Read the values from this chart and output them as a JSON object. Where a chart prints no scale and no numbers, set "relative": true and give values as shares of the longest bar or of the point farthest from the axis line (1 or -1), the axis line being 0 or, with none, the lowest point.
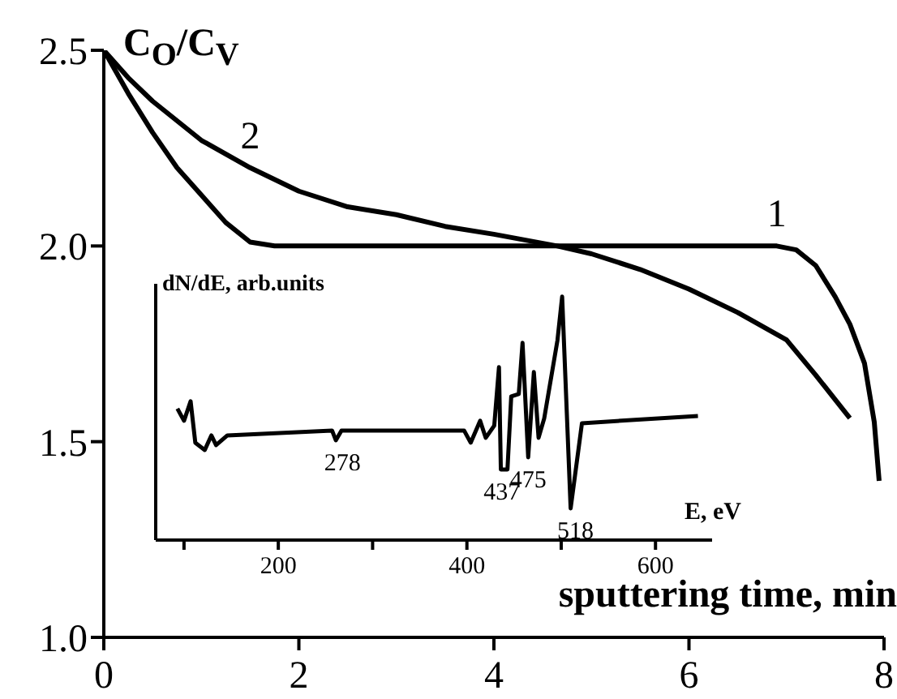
{
  "chart_data": [
    {
      "type": "line",
      "ylabel": "C$_{O}$/C$_{V}$",
      "xlabel": "sputtering time, min",
      "xlim": [
        0,
        8
      ],
      "xticks": [
        0,
        2,
        4,
        6,
        8
      ],
      "ylim": [
        1,
        2.5
      ],
      "yticks": [
        {
          "value": 1,
          "label": "1.0"
        },
        1.5,
        {
          "value": 2,
          "label": "2.0"
        },
        2.5
      ],
      "series": [
        {
          "name": "1",
          "color": "#000000",
          "x": [
            0,
            0.25,
            0.5,
            0.75,
            1,
            1.25,
            1.5,
            1.75,
            6.9,
            7.1,
            7.3,
            7.5,
            7.65,
            7.8,
            7.9,
            7.95
          ],
          "values": [
            2.5,
            2.39,
            2.29,
            2.2,
            2.13,
            2.06,
            2.01,
            2.0,
            2.0,
            1.99,
            1.95,
            1.87,
            1.8,
            1.7,
            1.55,
            1.4
          ]
        },
        {
          "name": "2",
          "color": "#000000",
          "x": [
            0,
            0.25,
            0.5,
            1,
            1.5,
            2,
            2.5,
            3,
            3.5,
            4,
            4.65,
            5,
            5.5,
            6,
            6.5,
            7,
            7.3,
            7.65
          ],
          "values": [
            2.5,
            2.43,
            2.37,
            2.27,
            2.2,
            2.14,
            2.1,
            2.08,
            2.05,
            2.03,
            2.0,
            1.98,
            1.94,
            1.89,
            1.83,
            1.76,
            1.67,
            1.56
          ]
        }
      ]
    },
    {
      "type": "line",
      "relative": true,
      "ylabel": "dN/dE, arb.units",
      "xlabel": "E, eV",
      "xlim": [
        70,
        660
      ],
      "xticks": [
        {
          "value": 100,
          "label": null
        },
        200,
        {
          "value": 300,
          "label": null
        },
        400,
        {
          "value": 500,
          "label": null
        },
        600
      ],
      "series": [
        {
          "color": "#000000",
          "x": [
            93,
            100,
            107,
            112,
            122,
            129,
            134,
            146,
            257,
            261,
            267,
            397,
            404,
            414,
            420,
            429,
            434,
            436,
            443,
            447,
            455,
            459,
            465,
            471,
            476,
            482,
            496,
            501,
            510,
            522,
            645
          ],
          "values": [
            0.54,
            0.49,
            0.57,
            0.4,
            0.37,
            0.43,
            0.39,
            0.43,
            0.45,
            0.41,
            0.45,
            0.45,
            0.4,
            0.49,
            0.42,
            0.47,
            0.71,
            0.29,
            0.29,
            0.59,
            0.6,
            0.81,
            0.34,
            0.69,
            0.42,
            0.5,
            0.82,
            1.0,
            0.13,
            0.48,
            0.51
          ]
        }
      ],
      "annotations": [
        {
          "text": "278",
          "x": 268,
          "y": 0.41
        },
        {
          "text": "437",
          "x": 437,
          "y": 0.29
        },
        {
          "text": "475",
          "x": 465,
          "y": 0.34
        },
        {
          "text": "518",
          "x": 515,
          "y": 0.13
        }
      ]
    }
  ]
}
